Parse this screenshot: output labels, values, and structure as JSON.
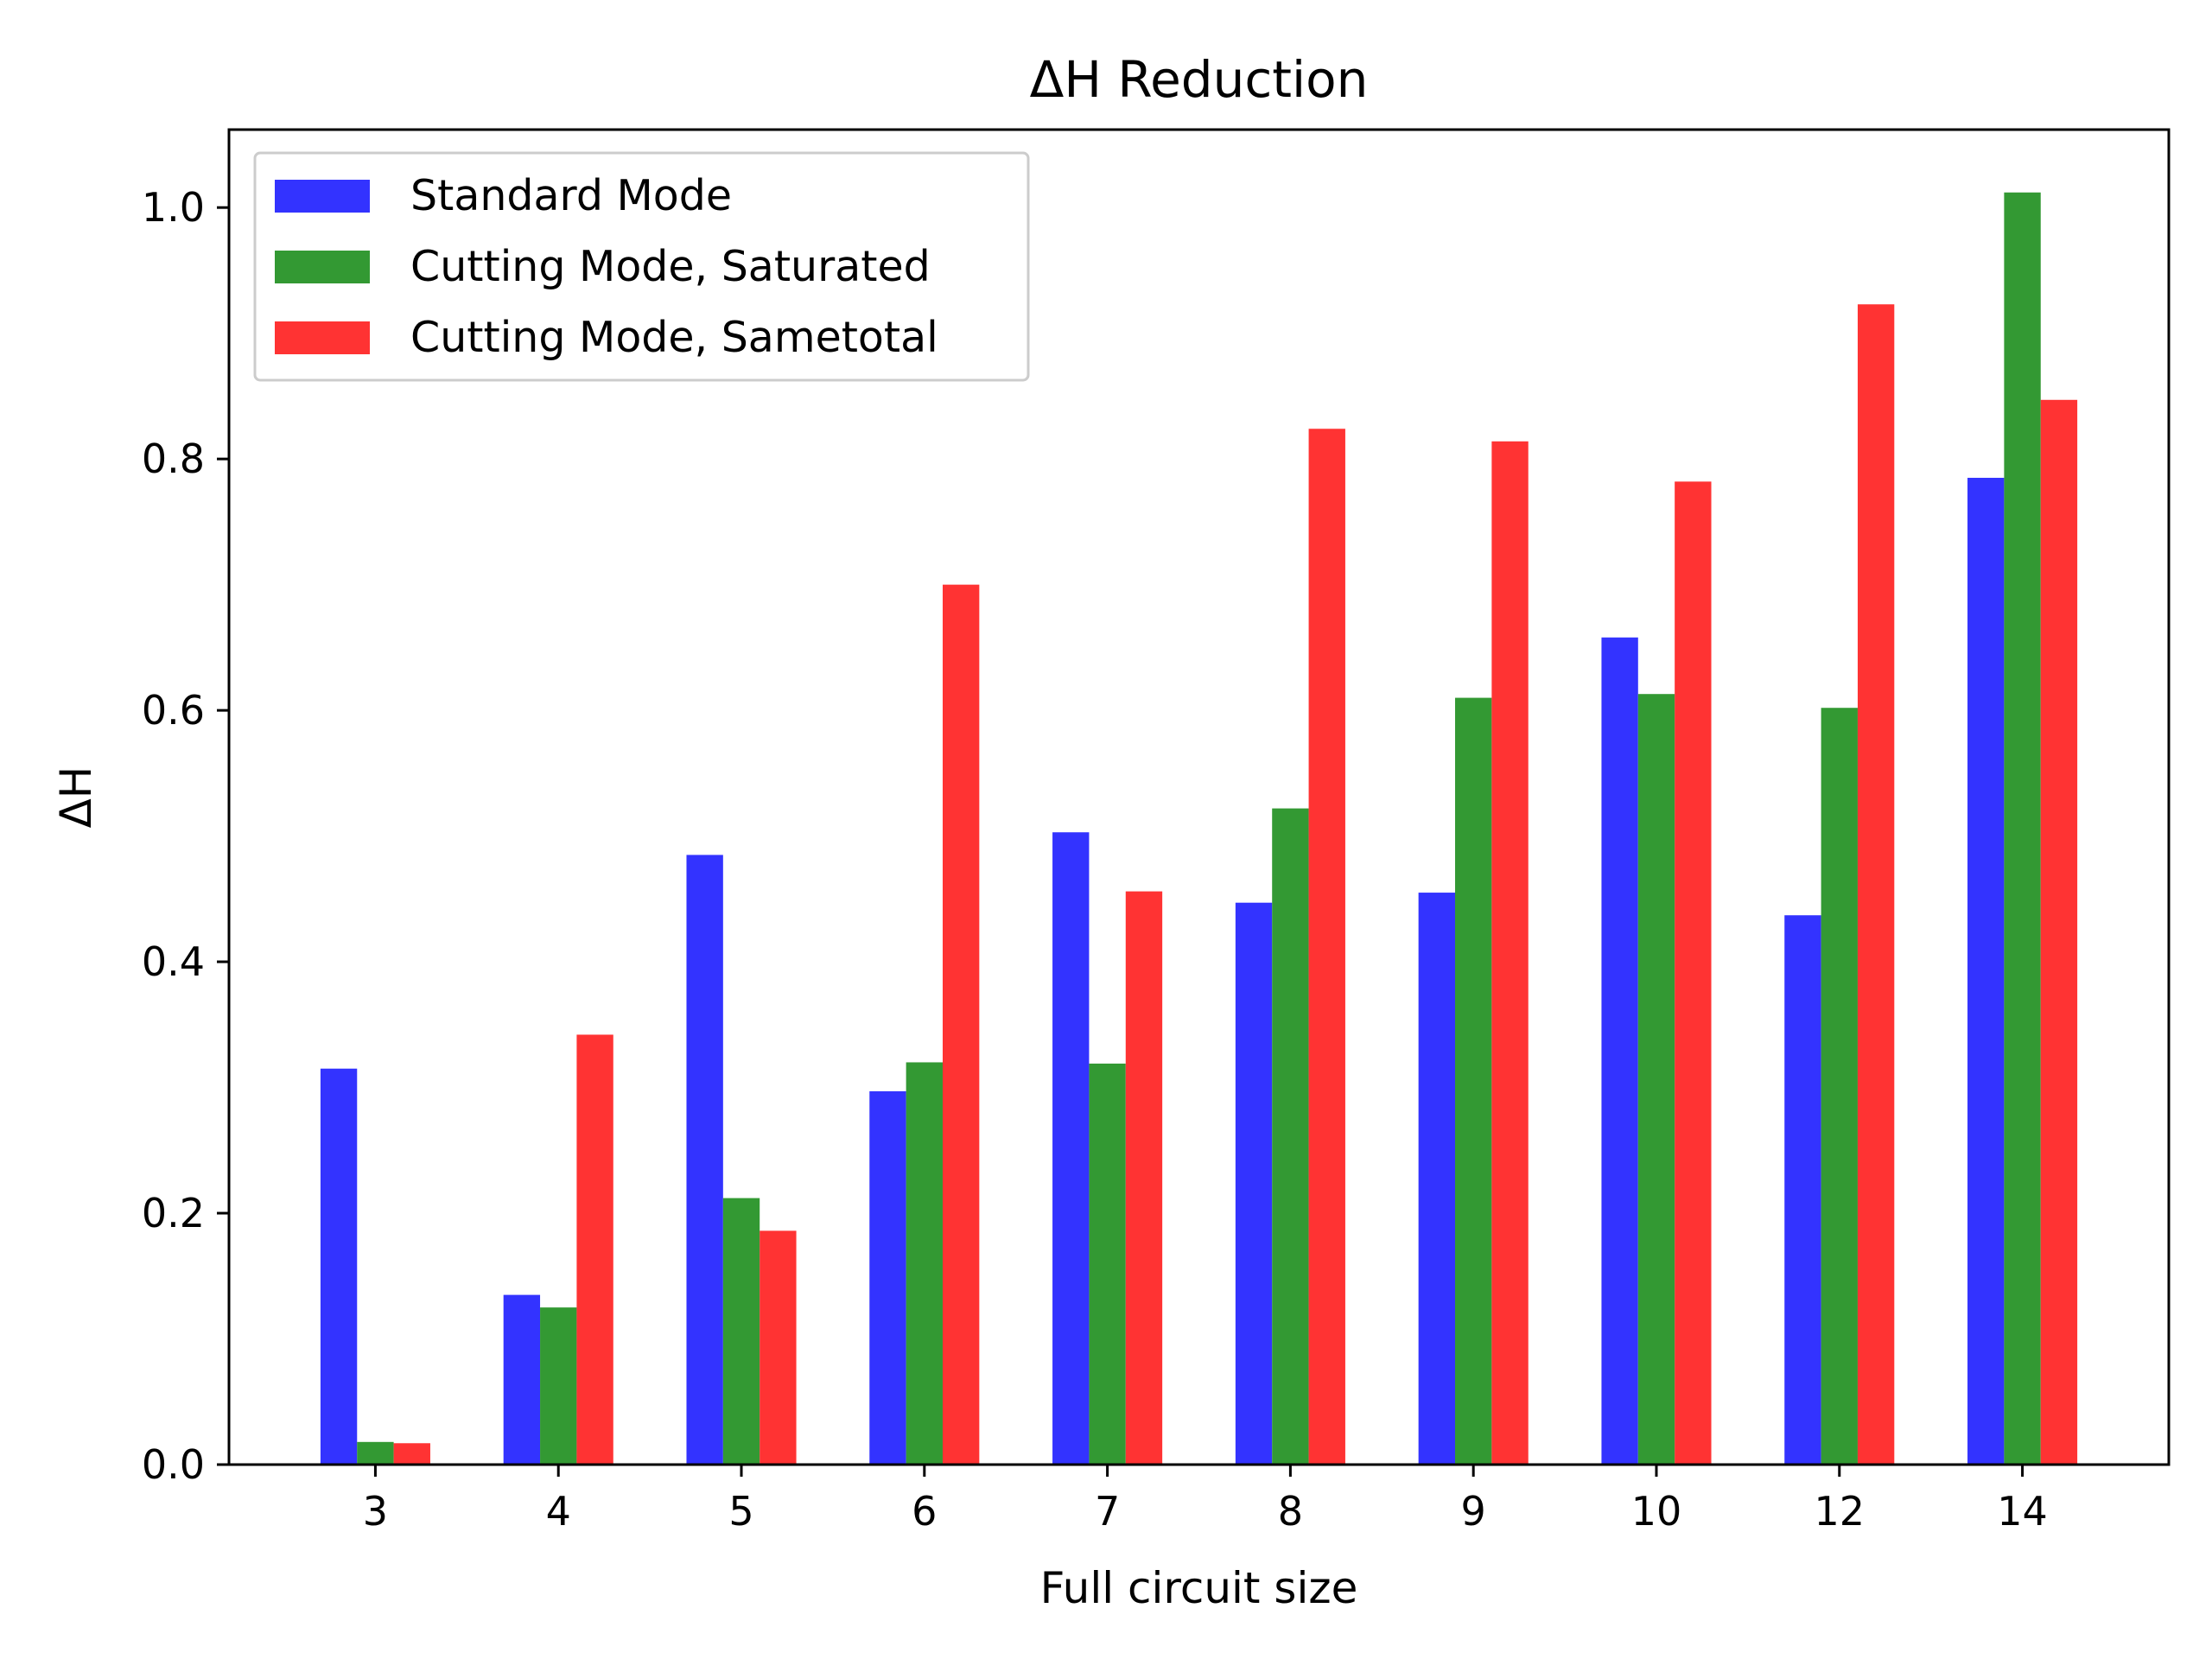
{
  "chart_data": {
    "type": "bar",
    "title": "ΔH Reduction",
    "xlabel": "Full circuit size",
    "ylabel": "ΔH",
    "categories": [
      "3",
      "4",
      "5",
      "6",
      "7",
      "8",
      "9",
      "10",
      "12",
      "14"
    ],
    "series": [
      {
        "name": "Standard Mode",
        "color": "#3333ff",
        "values": [
          0.315,
          0.135,
          0.485,
          0.297,
          0.503,
          0.447,
          0.455,
          0.658,
          0.437,
          0.785
        ]
      },
      {
        "name": "Cutting Mode, Saturated",
        "color": "#339933",
        "values": [
          0.018,
          0.125,
          0.212,
          0.32,
          0.319,
          0.522,
          0.61,
          0.613,
          0.602,
          1.012
        ]
      },
      {
        "name": "Cutting Mode, Sametotal",
        "color": "#ff3333",
        "values": [
          0.017,
          0.342,
          0.186,
          0.7,
          0.456,
          0.824,
          0.814,
          0.782,
          0.923,
          0.847
        ]
      }
    ],
    "ylim": [
      0,
      1.062
    ],
    "yticks": [
      "0.0",
      "0.2",
      "0.4",
      "0.6",
      "0.8",
      "1.0"
    ],
    "ytick_values": [
      0,
      0.2,
      0.4,
      0.6,
      0.8,
      1.0
    ],
    "grid": false,
    "legend_position": "top-left"
  }
}
